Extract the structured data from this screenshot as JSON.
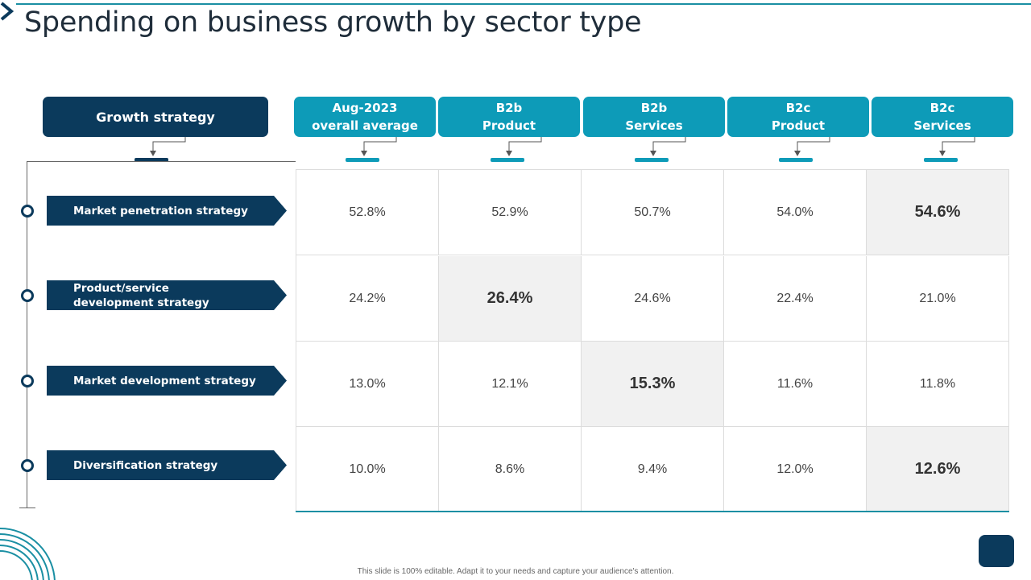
{
  "title": "Spending on business growth by sector type",
  "header": {
    "row_header": "Growth strategy",
    "columns": [
      {
        "line1": "Aug-2023",
        "line2": "overall average"
      },
      {
        "line1": "B2b",
        "line2": "Product"
      },
      {
        "line1": "B2b",
        "line2": "Services"
      },
      {
        "line1": "B2c",
        "line2": "Product"
      },
      {
        "line1": "B2c",
        "line2": "Services"
      }
    ]
  },
  "rows": [
    {
      "line1": "Market penetration strategy",
      "line2": ""
    },
    {
      "line1": "Product/service",
      "line2": "development strategy"
    },
    {
      "line1": "Market development strategy",
      "line2": ""
    },
    {
      "line1": "Diversification strategy",
      "line2": ""
    }
  ],
  "chart_data": {
    "type": "table",
    "title": "Spending on business growth by sector type",
    "row_header": "Growth strategy",
    "columns": [
      "Aug-2023 overall average",
      "B2b Product",
      "B2b Services",
      "B2c Product",
      "B2c Services"
    ],
    "rows": [
      "Market penetration strategy",
      "Product/service development strategy",
      "Market development strategy",
      "Diversification strategy"
    ],
    "values": [
      [
        "52.8%",
        "52.9%",
        "50.7%",
        "54.0%",
        "54.6%"
      ],
      [
        "24.2%",
        "26.4%",
        "24.6%",
        "22.4%",
        "21.0%"
      ],
      [
        "13.0%",
        "12.1%",
        "15.3%",
        "11.6%",
        "11.8%"
      ],
      [
        "10.0%",
        "8.6%",
        "9.4%",
        "12.0%",
        "12.6%"
      ]
    ],
    "highlighted": [
      [
        0,
        4
      ],
      [
        1,
        1
      ],
      [
        2,
        2
      ],
      [
        3,
        4
      ]
    ]
  },
  "colors": {
    "dark": "#0b3a5c",
    "accent": "#0d9bb8",
    "highlight": "#f1f1f1"
  },
  "footer": "This slide is 100% editable. Adapt it to your needs and capture your audience's attention."
}
